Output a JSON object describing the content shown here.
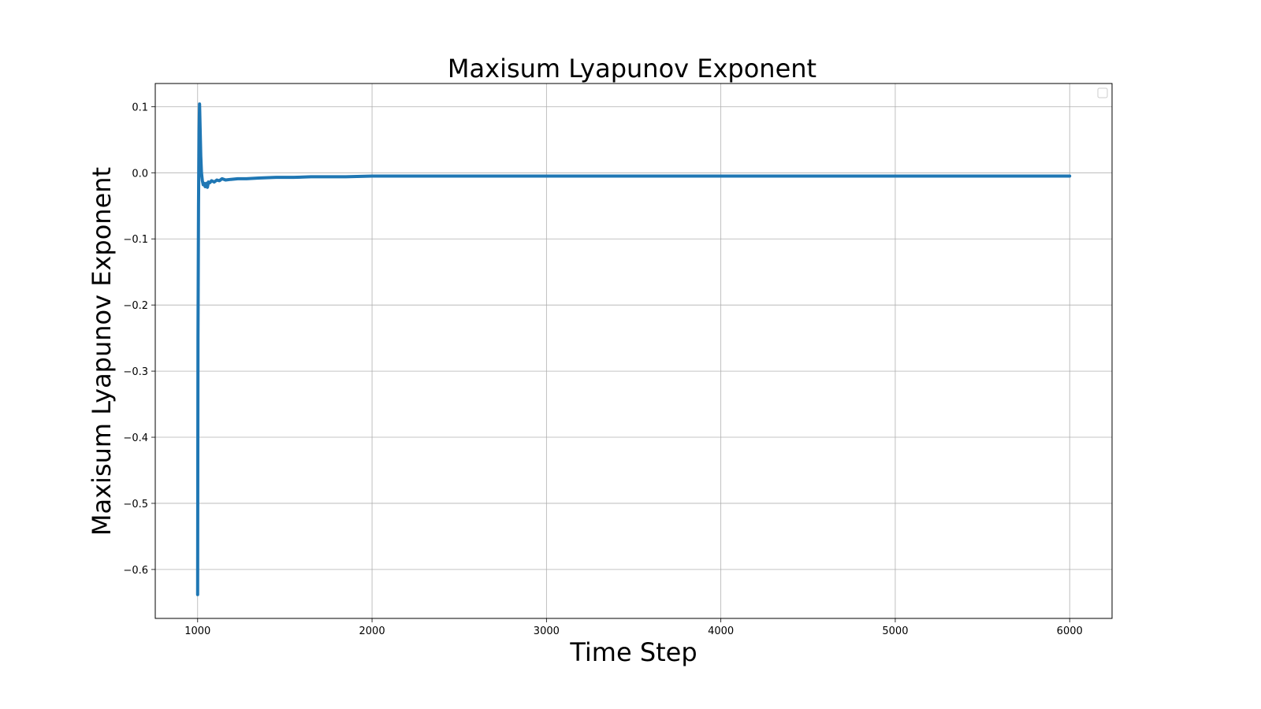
{
  "chart_data": {
    "type": "line",
    "title": "Maxisum Lyapunov Exponent",
    "xlabel": "Time Step",
    "ylabel": "Maxisum Lyapunov Exponent",
    "xlim": [
      757,
      6243
    ],
    "ylim": [
      -0.674,
      0.135
    ],
    "xticks": [
      1000,
      2000,
      3000,
      4000,
      5000,
      6000
    ],
    "xtick_labels": [
      "1000",
      "2000",
      "3000",
      "4000",
      "5000",
      "6000"
    ],
    "yticks": [
      0.1,
      0.0,
      -0.1,
      -0.2,
      -0.3,
      -0.4,
      -0.5,
      -0.6
    ],
    "ytick_labels": [
      "0.1",
      "0.0",
      "−0.1",
      "−0.2",
      "−0.3",
      "−0.4",
      "−0.5",
      "−0.6"
    ],
    "grid": true,
    "legend": "top-right (empty)",
    "series": [
      {
        "color": "#1f77b4",
        "x": [
          1000,
          1002,
          1005,
          1008,
          1011,
          1014,
          1018,
          1022,
          1027,
          1032,
          1037,
          1043,
          1050,
          1056,
          1062,
          1070,
          1080,
          1095,
          1110,
          1125,
          1140,
          1160,
          1190,
          1230,
          1280,
          1350,
          1450,
          1550,
          1650,
          1750,
          1850,
          2000,
          2200,
          2500,
          3000,
          3500,
          4000,
          4500,
          5000,
          5500,
          6000
        ],
        "y": [
          -0.638,
          -0.25,
          -0.05,
          0.06,
          0.104,
          0.07,
          0.025,
          0.0,
          -0.012,
          -0.018,
          -0.016,
          -0.021,
          -0.016,
          -0.022,
          -0.014,
          -0.015,
          -0.012,
          -0.014,
          -0.011,
          -0.012,
          -0.009,
          -0.011,
          -0.01,
          -0.009,
          -0.009,
          -0.008,
          -0.007,
          -0.007,
          -0.006,
          -0.006,
          -0.006,
          -0.005,
          -0.005,
          -0.005,
          -0.005,
          -0.005,
          -0.005,
          -0.005,
          -0.005,
          -0.005,
          -0.005
        ]
      }
    ]
  }
}
